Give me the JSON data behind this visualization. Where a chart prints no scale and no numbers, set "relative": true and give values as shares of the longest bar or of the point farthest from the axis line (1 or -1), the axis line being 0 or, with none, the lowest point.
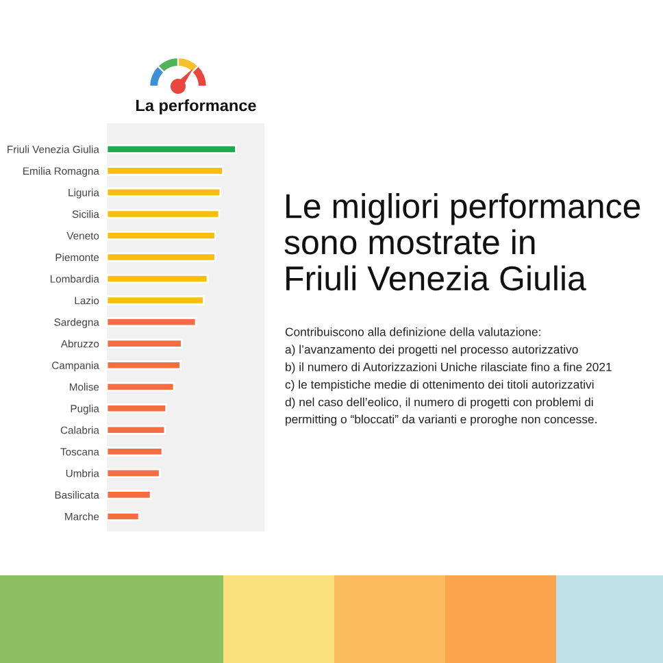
{
  "chart_data": {
    "type": "bar",
    "orientation": "horizontal",
    "relative": true,
    "title": "La performance",
    "subtitle": "Le migliori performance\nsono mostrate in\nFriuli Venezia Giulia",
    "annotations": [
      "Contribuiscono alla definizione della valutazione:",
      "a) l’avanzamento dei progetti nel processo autorizzativo",
      "b) il numero di Autorizzazioni Uniche rilasciate fino a fine 2021",
      "c) le tempistiche medie di ottenimento dei titoli autorizzativi",
      "d) nel caso dell’eolico, il numero di progetti con problemi di\npermitting o “bloccati” da varianti e proroghe non concesse."
    ],
    "categories": [
      "Friuli Venezia Giulia",
      "Emilia Romagna",
      "Liguria",
      "Sicilia",
      "Veneto",
      "Piemonte",
      "Lombardia",
      "Lazio",
      "Sardegna",
      "Abruzzo",
      "Campania",
      "Molise",
      "Puglia",
      "Calabria",
      "Toscana",
      "Umbria",
      "Basilicata",
      "Marche"
    ],
    "values": [
      1,
      0.9,
      0.88,
      0.87,
      0.84,
      0.84,
      0.78,
      0.75,
      0.69,
      0.58,
      0.57,
      0.52,
      0.46,
      0.45,
      0.43,
      0.41,
      0.34,
      0.25
    ],
    "colors": [
      "#1ba94c",
      "#fbbd0e",
      "#fbbd0e",
      "#fbbd0e",
      "#fbbd0e",
      "#fbbd0e",
      "#fbbd0e",
      "#fbbd0e",
      "#f46d43",
      "#f46d43",
      "#f46d43",
      "#f46d43",
      "#f46d43",
      "#f46d43",
      "#f46d43",
      "#f46d43",
      "#f46d43",
      "#f46d43"
    ]
  }
}
